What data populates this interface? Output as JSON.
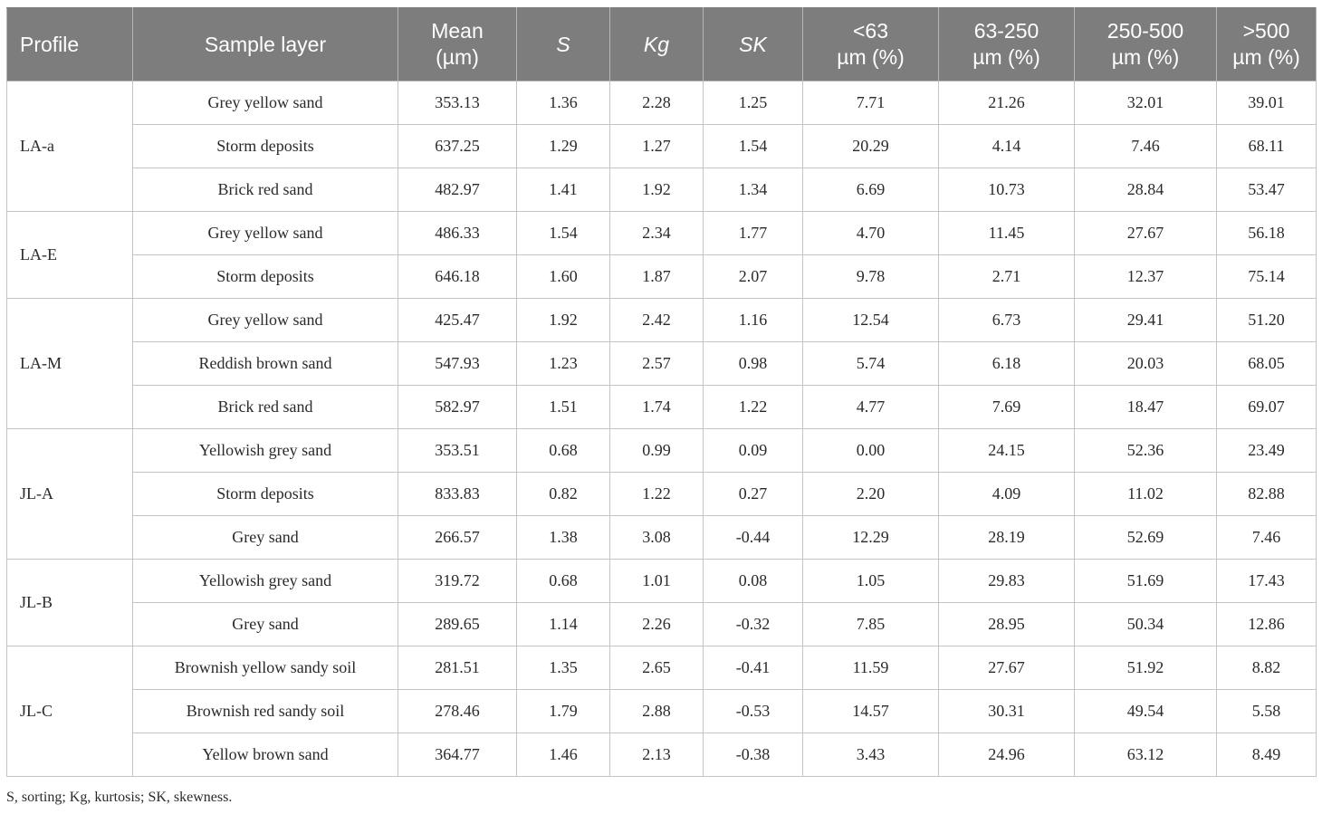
{
  "table": {
    "headers": [
      {
        "line1": "Profile",
        "line2": "",
        "italic": false
      },
      {
        "line1": "Sample layer",
        "line2": "",
        "italic": false
      },
      {
        "line1": "Mean",
        "line2": "(µm)",
        "italic": false
      },
      {
        "line1": "S",
        "line2": "",
        "italic": true
      },
      {
        "line1": "Kg",
        "line2": "",
        "italic": true
      },
      {
        "line1": "SK",
        "line2": "",
        "italic": true
      },
      {
        "line1": "<63",
        "line2": "µm (%)",
        "italic": false
      },
      {
        "line1": "63-250",
        "line2": "µm (%)",
        "italic": false
      },
      {
        "line1": "250-500",
        "line2": "µm (%)",
        "italic": false
      },
      {
        "line1": ">500",
        "line2": "µm (%)",
        "italic": false
      }
    ],
    "groups": [
      {
        "profile": "LA-a",
        "rows": [
          [
            "Grey yellow sand",
            "353.13",
            "1.36",
            "2.28",
            "1.25",
            "7.71",
            "21.26",
            "32.01",
            "39.01"
          ],
          [
            "Storm deposits",
            "637.25",
            "1.29",
            "1.27",
            "1.54",
            "20.29",
            "4.14",
            "7.46",
            "68.11"
          ],
          [
            "Brick red sand",
            "482.97",
            "1.41",
            "1.92",
            "1.34",
            "6.69",
            "10.73",
            "28.84",
            "53.47"
          ]
        ]
      },
      {
        "profile": "LA-E",
        "rows": [
          [
            "Grey yellow sand",
            "486.33",
            "1.54",
            "2.34",
            "1.77",
            "4.70",
            "11.45",
            "27.67",
            "56.18"
          ],
          [
            "Storm deposits",
            "646.18",
            "1.60",
            "1.87",
            "2.07",
            "9.78",
            "2.71",
            "12.37",
            "75.14"
          ]
        ]
      },
      {
        "profile": "LA-M",
        "rows": [
          [
            "Grey yellow sand",
            "425.47",
            "1.92",
            "2.42",
            "1.16",
            "12.54",
            "6.73",
            "29.41",
            "51.20"
          ],
          [
            "Reddish brown sand",
            "547.93",
            "1.23",
            "2.57",
            "0.98",
            "5.74",
            "6.18",
            "20.03",
            "68.05"
          ],
          [
            "Brick red sand",
            "582.97",
            "1.51",
            "1.74",
            "1.22",
            "4.77",
            "7.69",
            "18.47",
            "69.07"
          ]
        ]
      },
      {
        "profile": "JL-A",
        "rows": [
          [
            "Yellowish grey sand",
            "353.51",
            "0.68",
            "0.99",
            "0.09",
            "0.00",
            "24.15",
            "52.36",
            "23.49"
          ],
          [
            "Storm deposits",
            "833.83",
            "0.82",
            "1.22",
            "0.27",
            "2.20",
            "4.09",
            "11.02",
            "82.88"
          ],
          [
            "Grey sand",
            "266.57",
            "1.38",
            "3.08",
            "-0.44",
            "12.29",
            "28.19",
            "52.69",
            "7.46"
          ]
        ]
      },
      {
        "profile": "JL-B",
        "rows": [
          [
            "Yellowish grey sand",
            "319.72",
            "0.68",
            "1.01",
            "0.08",
            "1.05",
            "29.83",
            "51.69",
            "17.43"
          ],
          [
            "Grey sand",
            "289.65",
            "1.14",
            "2.26",
            "-0.32",
            "7.85",
            "28.95",
            "50.34",
            "12.86"
          ]
        ]
      },
      {
        "profile": "JL-C",
        "rows": [
          [
            "Brownish yellow sandy soil",
            "281.51",
            "1.35",
            "2.65",
            "-0.41",
            "11.59",
            "27.67",
            "51.92",
            "8.82"
          ],
          [
            "Brownish red sandy soil",
            "278.46",
            "1.79",
            "2.88",
            "-0.53",
            "14.57",
            "30.31",
            "49.54",
            "5.58"
          ],
          [
            "Yellow brown sand",
            "364.77",
            "1.46",
            "2.13",
            "-0.38",
            "3.43",
            "24.96",
            "63.12",
            "8.49"
          ]
        ]
      }
    ]
  },
  "footnote": "S, sorting; Kg, kurtosis; SK, skewness.",
  "colors": {
    "header_bg": "#7d7d7d",
    "header_text": "#ffffff",
    "grid": "#c4c4c4"
  }
}
